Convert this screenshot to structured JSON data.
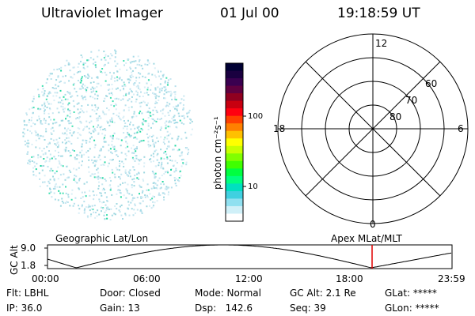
{
  "header": {
    "instrument": "Ultraviolet Imager",
    "date": "01 Jul 00",
    "time": "19:18:59 UT"
  },
  "colorbar": {
    "label": "photon cm⁻²s⁻¹",
    "ticks": [
      "100",
      "10"
    ],
    "colors": [
      "#000033",
      "#1a0040",
      "#3a0050",
      "#600040",
      "#900020",
      "#c80010",
      "#ff0010",
      "#ff4000",
      "#ff8000",
      "#ffc000",
      "#ffff00",
      "#c8ff00",
      "#80ff00",
      "#40ff00",
      "#00ff40",
      "#00ff80",
      "#00e0c0",
      "#40d0e0",
      "#90e0f0",
      "#d0f0f8",
      "#ffffff"
    ]
  },
  "polar": {
    "hour_labels": [
      "12",
      "18",
      "6",
      "0"
    ],
    "lat_labels": [
      "60",
      "70",
      "80"
    ]
  },
  "panels": {
    "left_label": "Geographic Lat/Lon",
    "right_label": "Apex MLat/MLT"
  },
  "altitude_plot": {
    "ylabel": "GC Alt",
    "yticks": [
      "9.0",
      "1.8"
    ],
    "xticks": [
      "00:00",
      "06:00",
      "12:00",
      "18:00",
      "23:59"
    ],
    "marker_color": "#e00000"
  },
  "info": {
    "row1": [
      "Flt: LBHL",
      "Door: Closed",
      "Mode: Normal",
      "GC Alt: 2.1 Re",
      "GLat: *****"
    ],
    "row2": [
      "IP: 36.0",
      "Gain: 13",
      "Dsp:   142.6",
      "Seq: 39",
      "GLon: *****"
    ]
  }
}
